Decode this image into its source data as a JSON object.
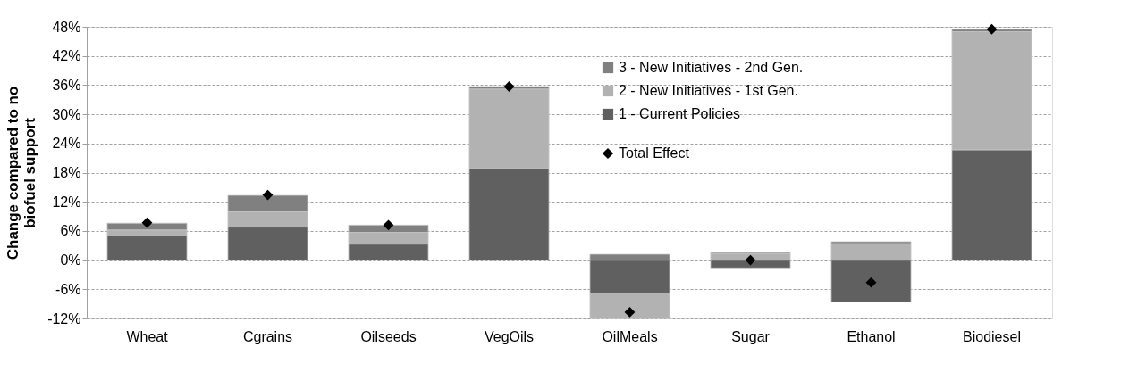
{
  "chart_data": {
    "type": "bar",
    "stacked": true,
    "ylabel": "Change compared to no biofuel support",
    "categories": [
      "Wheat",
      "Cgrains",
      "Oilseeds",
      "VegOils",
      "OilMeals",
      "Sugar",
      "Ethanol",
      "Biodiesel"
    ],
    "series": [
      {
        "name": "1 - Current Policies",
        "color": "#606060",
        "values": [
          5.0,
          6.8,
          3.3,
          18.8,
          -6.8,
          -1.6,
          -8.6,
          22.7
        ]
      },
      {
        "name": "2 - New Initiatives - 1st Gen.",
        "color": "#b2b2b2",
        "values": [
          1.2,
          3.2,
          2.4,
          16.4,
          -5.2,
          1.4,
          3.4,
          24.3
        ]
      },
      {
        "name": "3 - New Initiatives - 2nd Gen.",
        "color": "#808080",
        "values": [
          1.4,
          3.3,
          1.5,
          0.5,
          1.2,
          0.2,
          0.4,
          0.5
        ]
      },
      {
        "name": "Total Effect",
        "type": "scatter",
        "marker": "diamond",
        "color": "#000000",
        "values": [
          7.7,
          13.4,
          7.2,
          35.7,
          -10.7,
          0.0,
          -4.6,
          47.5
        ]
      }
    ],
    "ylim": [
      -12,
      48
    ],
    "yticks": [
      {
        "value": -12,
        "label": "-12%"
      },
      {
        "value": -6,
        "label": "-6%"
      },
      {
        "value": 0,
        "label": "0%"
      },
      {
        "value": 6,
        "label": "6%"
      },
      {
        "value": 12,
        "label": "12%"
      },
      {
        "value": 18,
        "label": "18%"
      },
      {
        "value": 24,
        "label": "24%"
      },
      {
        "value": 30,
        "label": "30%"
      },
      {
        "value": 36,
        "label": "36%"
      },
      {
        "value": 42,
        "label": "42%"
      },
      {
        "value": 48,
        "label": "48%"
      }
    ],
    "grid": "y",
    "legend": "top right"
  }
}
